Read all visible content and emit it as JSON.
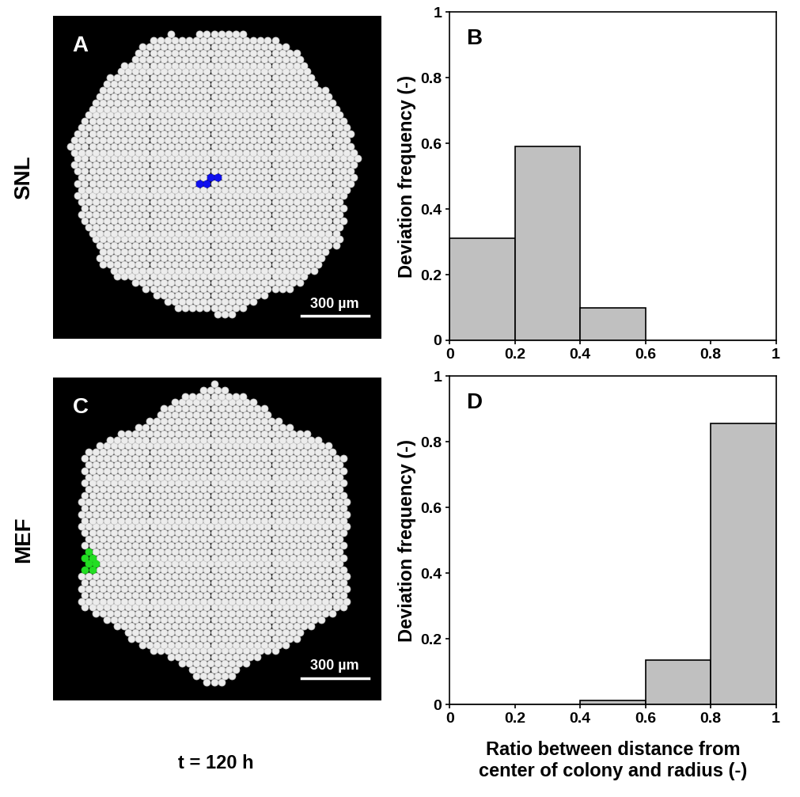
{
  "chart_data": [
    {
      "type": "image",
      "panel_label": "A",
      "row_label": "SNL",
      "color": "#1010ee",
      "scale_bar": {
        "value": 300,
        "label": "300 µm"
      }
    },
    {
      "type": "histogram",
      "panel_label": "B",
      "ylabel": "Deviation frequency (-)",
      "bins": [
        0,
        0.2,
        0.4,
        0.6,
        0.8,
        1
      ],
      "values": [
        0.31,
        0.59,
        0.1,
        0,
        0
      ],
      "color": "#c0c0c0",
      "xlim": [
        0,
        1
      ],
      "ylim": [
        0,
        1
      ],
      "xticks": [
        0,
        0.2,
        0.4,
        0.6,
        0.8,
        1
      ],
      "yticks": [
        0,
        0.2,
        0.4,
        0.6,
        0.8,
        1
      ]
    },
    {
      "type": "image",
      "panel_label": "C",
      "row_label": "MEF",
      "color": "#22dd22",
      "scale_bar": {
        "value": 300,
        "label": "300 µm"
      }
    },
    {
      "type": "histogram",
      "panel_label": "D",
      "ylabel": "Deviation frequency (-)",
      "xlabel": "Ratio between distance from\ncenter of colony and radius (-)",
      "bins": [
        0,
        0.2,
        0.4,
        0.6,
        0.8,
        1
      ],
      "values": [
        0,
        0,
        0.012,
        0.135,
        0.857
      ],
      "color": "#c0c0c0",
      "xlim": [
        0,
        1
      ],
      "ylim": [
        0,
        1
      ],
      "xticks": [
        0,
        0.2,
        0.4,
        0.6,
        0.8,
        1
      ],
      "yticks": [
        0,
        0.2,
        0.4,
        0.6,
        0.8,
        1
      ]
    }
  ],
  "caption": "t = 120 h"
}
